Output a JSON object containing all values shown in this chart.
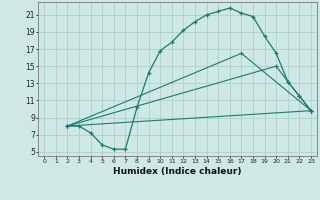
{
  "xlabel": "Humidex (Indice chaleur)",
  "bg_color": "#cde8e5",
  "line_color": "#1e7a6e",
  "grid_color": "#aecfcb",
  "xlim": [
    -0.5,
    23.5
  ],
  "ylim": [
    4.5,
    22.5
  ],
  "xticks": [
    0,
    1,
    2,
    3,
    4,
    5,
    6,
    7,
    8,
    9,
    10,
    11,
    12,
    13,
    14,
    15,
    16,
    17,
    18,
    19,
    20,
    21,
    22,
    23
  ],
  "yticks": [
    5,
    7,
    9,
    11,
    13,
    15,
    17,
    19,
    21
  ],
  "series": [
    {
      "x": [
        2,
        3,
        4,
        5,
        6,
        7,
        8,
        9,
        10,
        11,
        12,
        13,
        14,
        15,
        16,
        17,
        18,
        19,
        20,
        21,
        22,
        23
      ],
      "y": [
        8,
        8,
        7.2,
        5.8,
        5.3,
        5.3,
        10.2,
        14.2,
        16.8,
        17.8,
        19.2,
        20.2,
        21.0,
        21.4,
        21.8,
        21.2,
        20.8,
        18.5,
        16.5,
        13.2,
        11.5,
        9.8
      ]
    },
    {
      "x": [
        2,
        23
      ],
      "y": [
        8,
        9.8
      ]
    },
    {
      "x": [
        2,
        20,
        21,
        22,
        23
      ],
      "y": [
        8,
        15.0,
        13.2,
        11.5,
        9.8
      ]
    },
    {
      "x": [
        2,
        17,
        23
      ],
      "y": [
        8,
        16.5,
        9.8
      ]
    }
  ]
}
